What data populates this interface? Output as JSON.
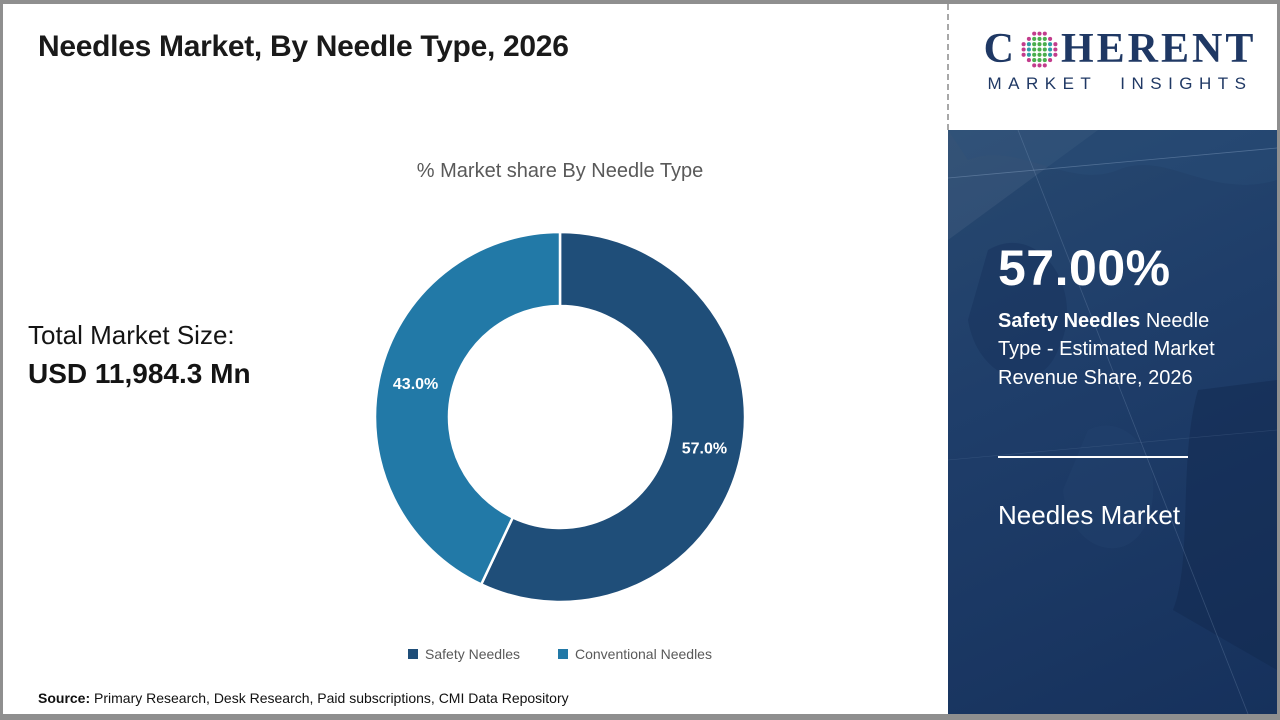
{
  "header": {
    "title": "Needles Market, By Needle Type, 2026"
  },
  "logo": {
    "word_start": "C",
    "word_end": "HERENT",
    "subtitle": "MARKET INSIGHTS",
    "navy": "#1F3864"
  },
  "left_panel": {
    "market_size_label": "Total Market Size:",
    "market_size_value": "USD 11,984.3 Mn"
  },
  "chart_data": {
    "type": "pie",
    "subtype": "donut",
    "title": "% Market share By Needle Type",
    "labels": [
      "Safety Needles",
      "Conventional Needles"
    ],
    "values": [
      57.0,
      43.0
    ],
    "data_labels": [
      "57.0%",
      "43.0%"
    ],
    "colors": [
      "#1F4E79",
      "#2279A7"
    ],
    "start_angle_deg": 0,
    "direction": "clockwise",
    "inner_radius_ratio": 0.6,
    "legend_position": "bottom",
    "legend_text_color": "#595959"
  },
  "side_panel": {
    "bg_color": "#1E3D69",
    "stat_value": "57.00%",
    "desc_bold": "Safety Needles",
    "desc_rest": " Needle Type - Estimated Market Revenue Share, 2026",
    "footer_title": "Needles Market"
  },
  "footer": {
    "source_label": "Source:",
    "source_text": " Primary Research, Desk Research, Paid subscriptions, CMI Data Repository"
  }
}
